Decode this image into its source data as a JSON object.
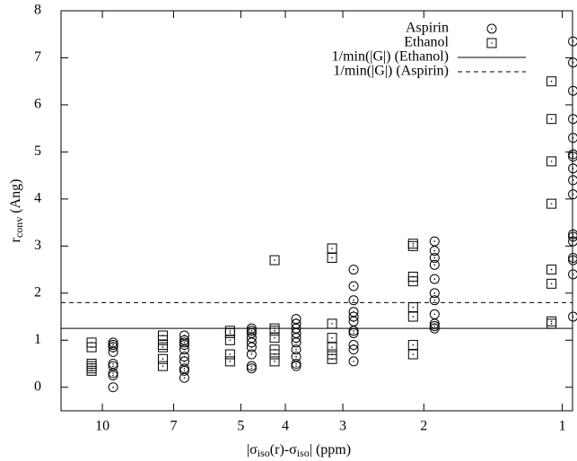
{
  "chart_data": {
    "type": "scatter",
    "xlabel": [
      "|σ",
      "iso",
      "(r)-σ",
      "iso",
      "| (ppm)"
    ],
    "ylabel": [
      "r",
      "conv",
      " (Ang)"
    ],
    "xscale": "log",
    "xreversed": true,
    "xlim": [
      12.3,
      0.95
    ],
    "xticks": [
      10,
      7,
      5,
      4,
      3,
      2,
      1
    ],
    "ylim": [
      -0.5,
      8
    ],
    "yticks": [
      0,
      1,
      2,
      3,
      4,
      5,
      6,
      7,
      8
    ],
    "legend": "top-right",
    "series": [
      {
        "name": "Aspirin",
        "marker": "circle",
        "color": "#000000",
        "x": [
          10,
          10,
          10,
          10,
          10,
          10,
          10,
          10,
          10,
          10,
          7,
          7,
          7,
          7,
          7,
          7,
          7,
          7,
          7,
          7,
          5,
          5,
          5,
          5,
          5,
          5,
          5,
          5,
          5,
          4,
          4,
          4,
          4,
          4,
          4,
          4,
          4,
          4,
          4,
          3,
          3,
          3,
          3,
          3,
          3,
          3,
          3,
          3,
          3,
          3,
          2,
          2,
          2,
          2,
          2,
          2,
          2,
          2,
          2,
          2,
          2,
          1,
          1,
          1,
          1,
          1,
          1,
          1,
          1,
          1,
          1,
          1,
          1,
          1,
          1,
          1,
          1,
          1
        ],
        "values": [
          0.95,
          0.9,
          0.85,
          0.75,
          0.5,
          0.45,
          0.3,
          0.25,
          0.0,
          0.9,
          1.1,
          1.0,
          0.9,
          0.8,
          0.65,
          0.55,
          0.4,
          0.35,
          0.2,
          0.95,
          1.25,
          1.15,
          1.05,
          0.95,
          0.85,
          0.7,
          0.45,
          0.4,
          1.2,
          1.45,
          1.35,
          1.25,
          1.15,
          1.05,
          0.95,
          0.8,
          0.65,
          0.5,
          0.45,
          2.5,
          2.15,
          1.85,
          1.6,
          1.5,
          1.4,
          1.2,
          1.15,
          0.9,
          0.8,
          0.55,
          3.1,
          2.9,
          2.75,
          2.6,
          2.3,
          2.0,
          1.85,
          1.55,
          1.35,
          1.3,
          1.25,
          7.35,
          6.9,
          6.3,
          5.7,
          5.3,
          4.95,
          4.9,
          4.65,
          4.4,
          4.1,
          3.25,
          3.2,
          3.1,
          2.75,
          2.7,
          2.4,
          1.5
        ]
      },
      {
        "name": "Ethanol",
        "marker": "square",
        "color": "#000000",
        "x": [
          10,
          10,
          10,
          10,
          10,
          10,
          7,
          7,
          7,
          7,
          7,
          7,
          5,
          5,
          5,
          5,
          5,
          4,
          4,
          4,
          4,
          4,
          4,
          4,
          3,
          3,
          3,
          3,
          3,
          3,
          3,
          2,
          2,
          2,
          2,
          2,
          2,
          2,
          2,
          1,
          1,
          1,
          1,
          1,
          1,
          1,
          1
        ],
        "values": [
          0.95,
          0.85,
          0.5,
          0.4,
          0.35,
          0.45,
          1.1,
          1.0,
          0.9,
          0.6,
          0.45,
          0.85,
          1.2,
          1.0,
          0.7,
          0.55,
          1.15,
          2.7,
          1.25,
          1.2,
          1.05,
          0.8,
          0.7,
          0.55,
          2.95,
          2.75,
          1.35,
          1.05,
          0.85,
          0.7,
          0.6,
          3.05,
          3.0,
          2.35,
          2.25,
          1.7,
          1.5,
          0.9,
          0.7,
          6.5,
          5.7,
          4.8,
          3.9,
          2.5,
          2.2,
          1.4,
          1.35
        ]
      }
    ],
    "lines": [
      {
        "name": "1/min(|G|) (Ethanol)",
        "value": 1.25,
        "dash": false,
        "color": "#000000"
      },
      {
        "name": "1/min(|G|) (Aspirin)",
        "value": 1.8,
        "dash": true,
        "color": "#000000"
      }
    ]
  }
}
